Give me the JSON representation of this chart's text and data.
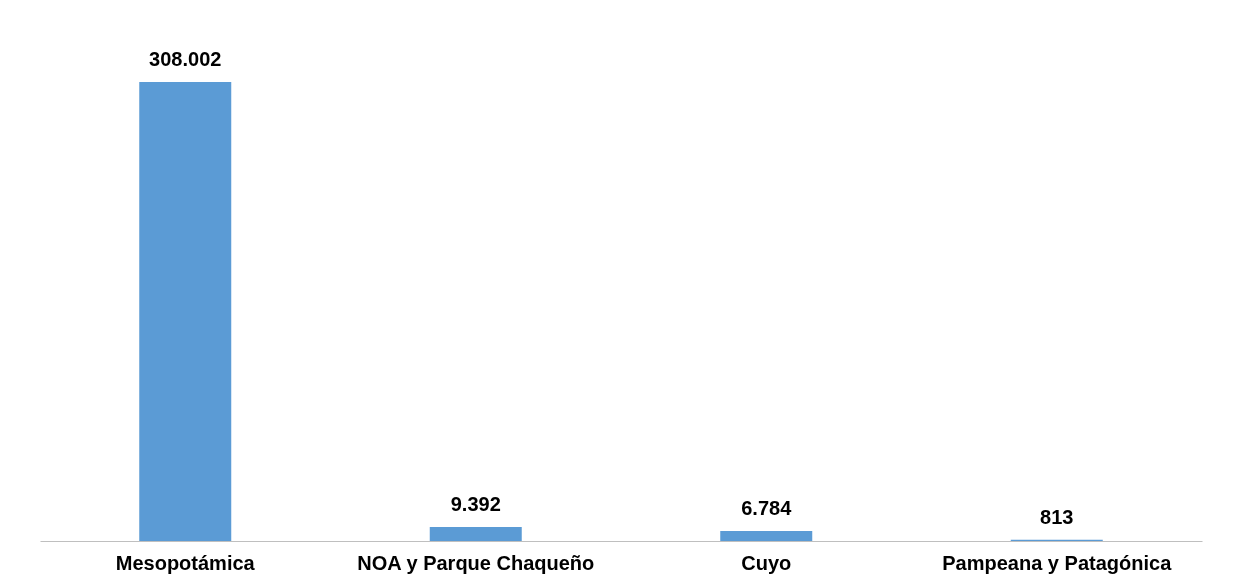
{
  "chart_data": {
    "type": "bar",
    "categories": [
      "Mesopotámica",
      "NOA y Parque Chaqueño",
      "Cuyo",
      "Pampeana y Patagónica"
    ],
    "values": [
      308002,
      9392,
      6784,
      813
    ],
    "value_labels": [
      "308.002",
      "9.392",
      "6.784",
      "813"
    ],
    "color": "#5b9bd5"
  }
}
